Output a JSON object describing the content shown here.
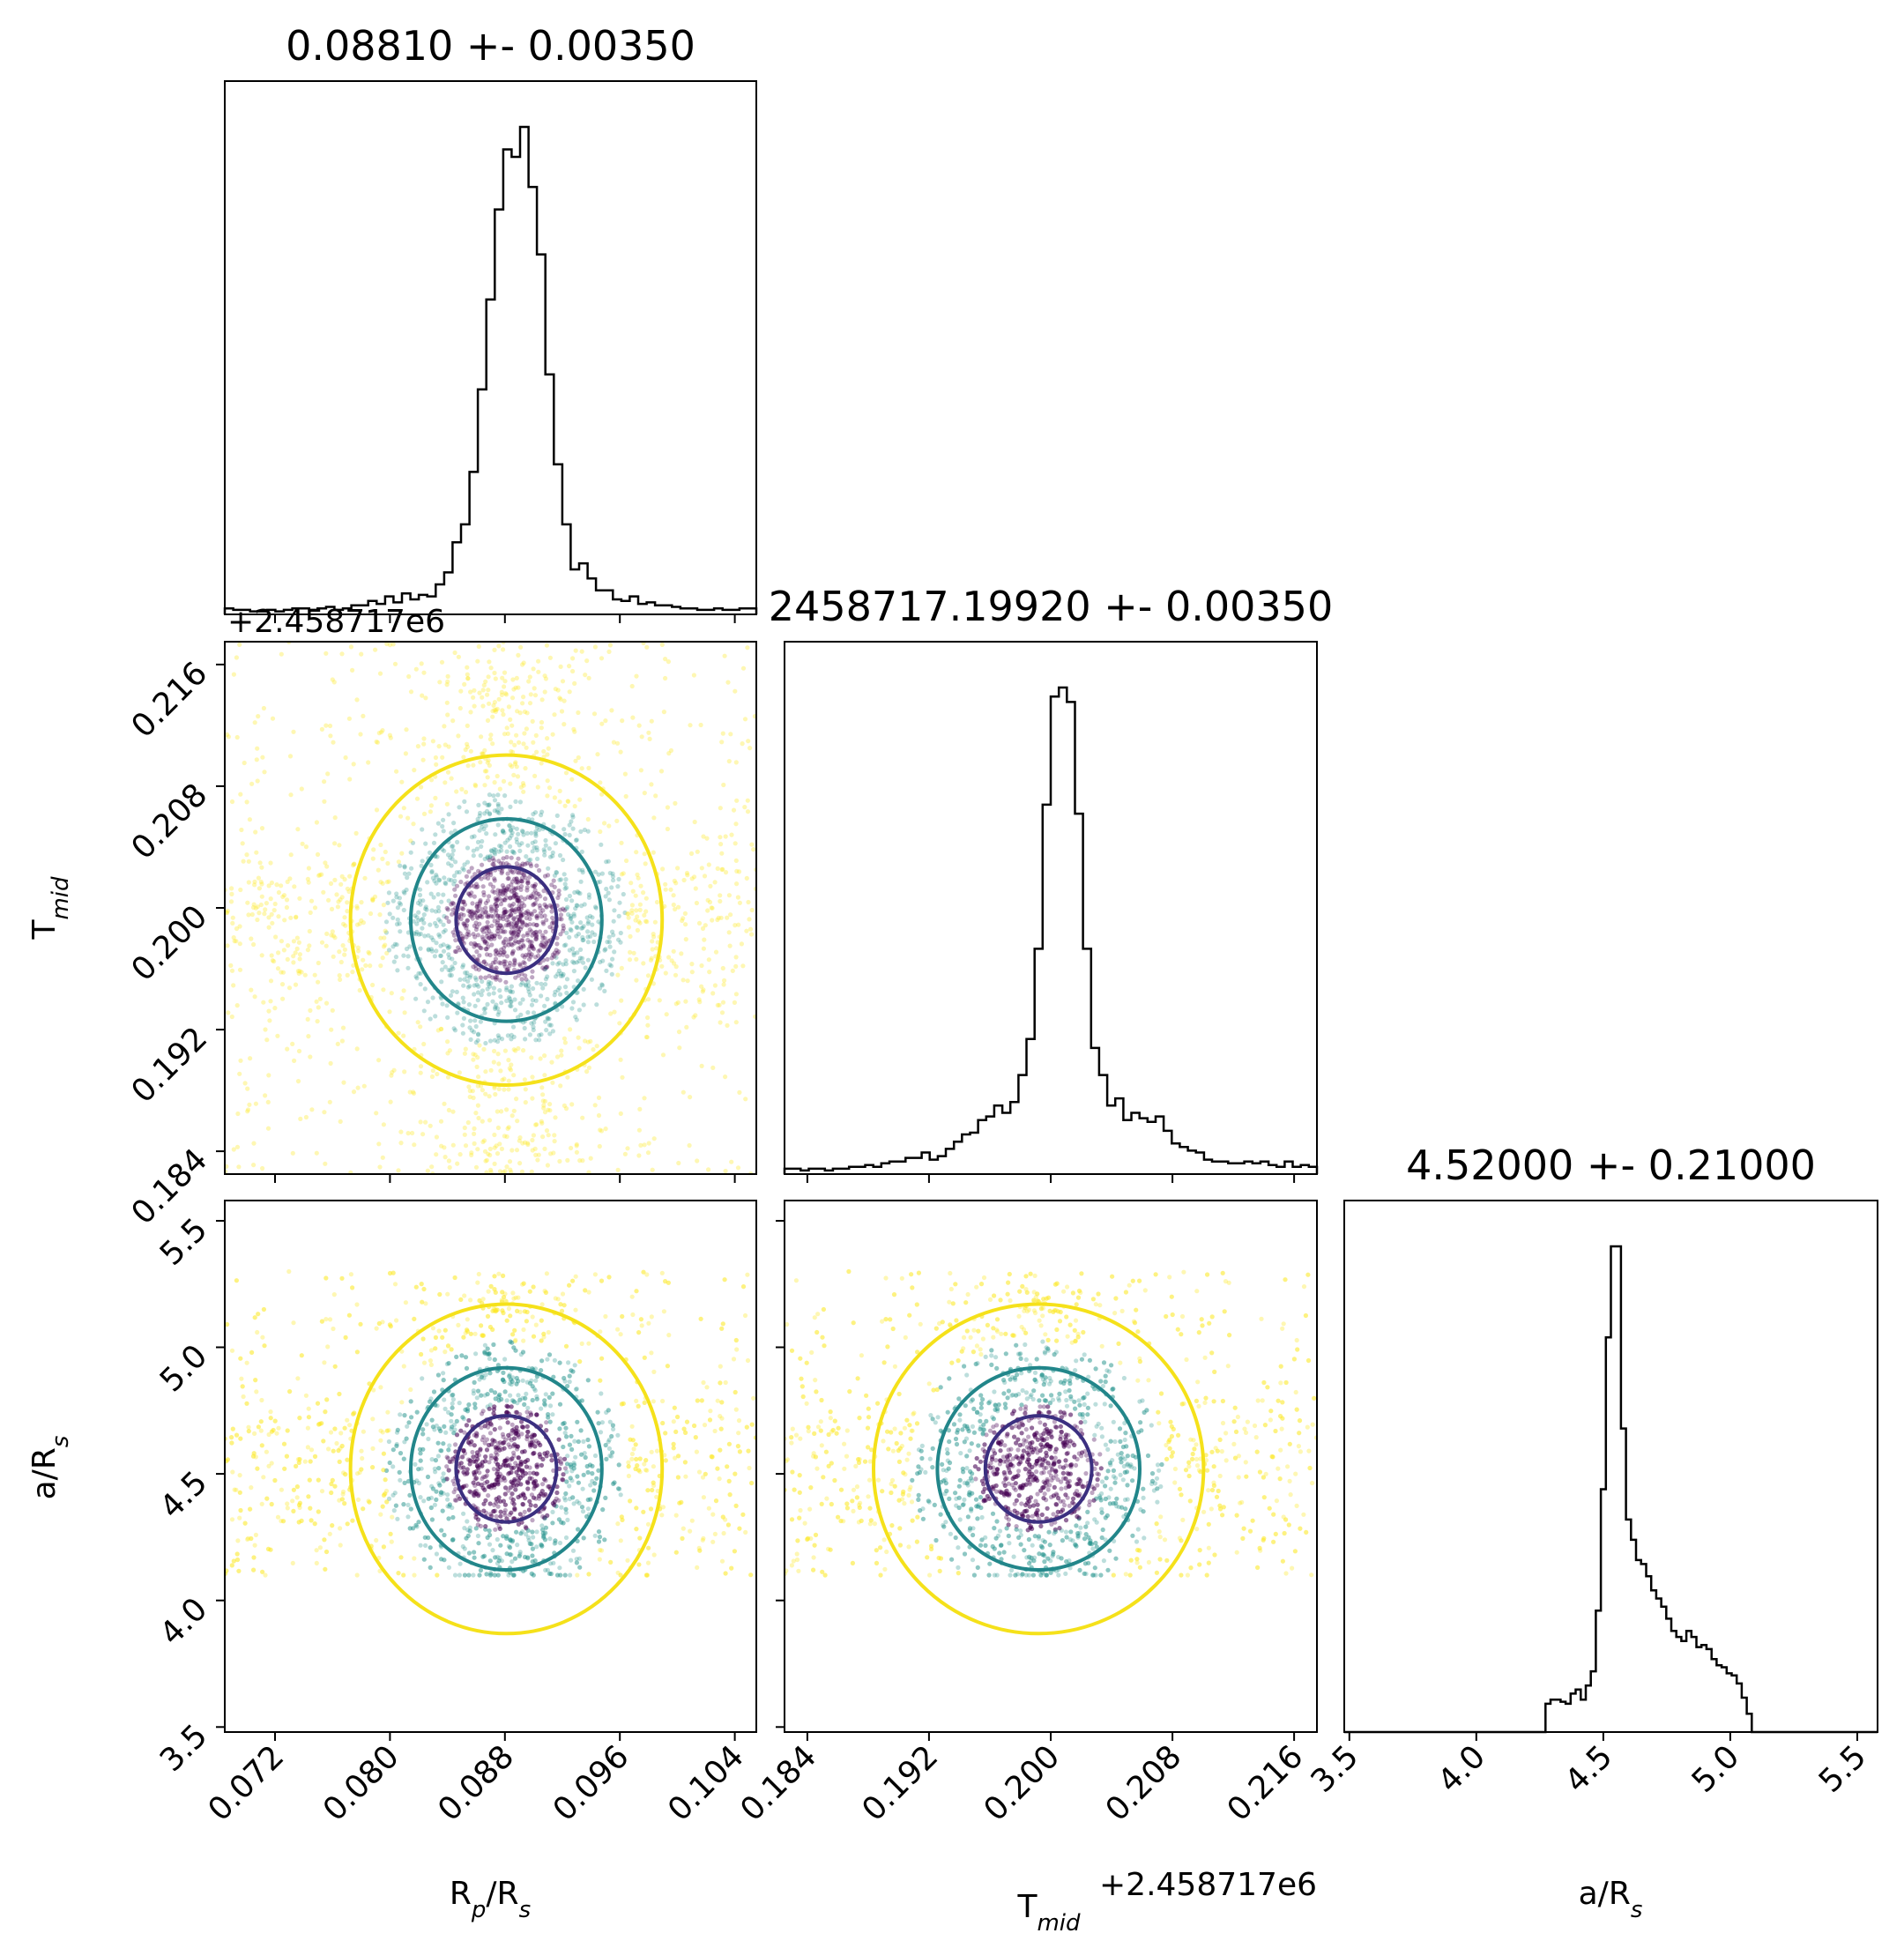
{
  "chart_data": {
    "type": "corner",
    "parameters": [
      {
        "key": "rp",
        "label_main": "R",
        "label_sub": "p",
        "label_mid": "/R",
        "label_sub2": "s",
        "range": [
          0.0685,
          0.1055
        ],
        "ticks": [
          "0.072",
          "0.080",
          "0.088",
          "0.096",
          "0.104"
        ],
        "tick_values": [
          0.072,
          0.08,
          0.088,
          0.096,
          0.104
        ]
      },
      {
        "key": "tmid",
        "label_main": "T",
        "label_sub": "mid",
        "range": [
          0.1825,
          0.2175
        ],
        "ticks": [
          "0.184",
          "0.192",
          "0.200",
          "0.208",
          "0.216"
        ],
        "tick_values": [
          0.184,
          0.192,
          0.2,
          0.208,
          0.216
        ],
        "offset_text": "+2.458717e6"
      },
      {
        "key": "ars",
        "label_main": "a/R",
        "label_sub": "s",
        "range": [
          3.48,
          5.58
        ],
        "ticks": [
          "3.5",
          "4.0",
          "4.5",
          "5.0",
          "5.5"
        ],
        "tick_values": [
          3.5,
          4.0,
          4.5,
          5.0,
          5.5
        ]
      }
    ],
    "titles": [
      "0.08810 +- 0.00350",
      "2458717.19920 +- 0.00350",
      "4.52000 +- 0.21000"
    ],
    "histograms": [
      {
        "param": "rp",
        "bins": [
          0.0685,
          0.1055
        ],
        "values": [
          4,
          3,
          3,
          2,
          2,
          3,
          2,
          3,
          4,
          4,
          3,
          4,
          5,
          3,
          4,
          6,
          6,
          9,
          7,
          12,
          8,
          14,
          10,
          13,
          12,
          20,
          28,
          48,
          60,
          95,
          150,
          210,
          270,
          310,
          305,
          325,
          285,
          240,
          160,
          100,
          60,
          30,
          34,
          24,
          16,
          16,
          10,
          9,
          12,
          7,
          8,
          6,
          6,
          5,
          4,
          4,
          3,
          3,
          4,
          3,
          3,
          4,
          4
        ]
      },
      {
        "param": "tmid",
        "bins": [
          0.1825,
          0.2175
        ],
        "values": [
          3,
          3,
          2,
          3,
          3,
          2,
          3,
          3,
          4,
          4,
          5,
          4,
          6,
          7,
          7,
          9,
          9,
          12,
          8,
          10,
          14,
          18,
          22,
          23,
          30,
          32,
          38,
          34,
          40,
          55,
          75,
          125,
          205,
          265,
          270,
          262,
          200,
          125,
          70,
          55,
          38,
          42,
          30,
          34,
          31,
          29,
          32,
          24,
          17,
          15,
          13,
          12,
          8,
          7,
          7,
          6,
          6,
          7,
          6,
          7,
          5,
          4,
          7,
          4,
          5,
          4
        ]
      },
      {
        "param": "ars",
        "bins": [
          3.48,
          5.58
        ],
        "values": [
          0,
          0,
          0,
          0,
          0,
          0,
          0,
          0,
          0,
          0,
          0,
          0,
          0,
          0,
          0,
          0,
          0,
          0,
          0,
          0,
          0,
          0,
          0,
          0,
          0,
          0,
          0,
          0,
          0,
          0,
          0,
          0,
          0,
          0,
          0,
          0,
          0,
          0,
          0,
          0,
          14,
          16,
          16,
          15,
          14,
          19,
          21,
          16,
          23,
          30,
          60,
          120,
          195,
          240,
          240,
          150,
          105,
          95,
          85,
          83,
          77,
          70,
          66,
          62,
          56,
          50,
          47,
          45,
          50,
          47,
          42,
          43,
          41,
          36,
          33,
          32,
          29,
          28,
          24,
          17,
          9,
          0,
          0,
          0,
          0,
          0,
          0,
          0,
          0,
          0,
          0,
          0,
          0,
          0,
          0,
          0,
          0,
          0,
          0,
          0,
          0,
          0,
          0,
          0,
          0,
          0
        ]
      }
    ],
    "posterior": {
      "rp": {
        "center": 0.0881,
        "sigma": 0.0035,
        "prior": [
          0.0685,
          0.1055
        ]
      },
      "tmid": {
        "center": 0.1992,
        "sigma": 0.0035,
        "prior": [
          0.1825,
          0.2175
        ]
      },
      "ars": {
        "center": 4.52,
        "sigma": 0.21,
        "prior": [
          4.1,
          5.3
        ]
      }
    },
    "contour_levels": [
      "inner",
      "middle",
      "outer"
    ],
    "grid": false
  },
  "colors": {
    "axes": "#000000",
    "hist": "#000000",
    "contour_inner": "#3b2f80",
    "contour_middle": "#22868a",
    "contour_outer": "#f5e11a",
    "density_dark": "#440154",
    "density_mid": "#21918c",
    "density_light": "#fde725"
  }
}
